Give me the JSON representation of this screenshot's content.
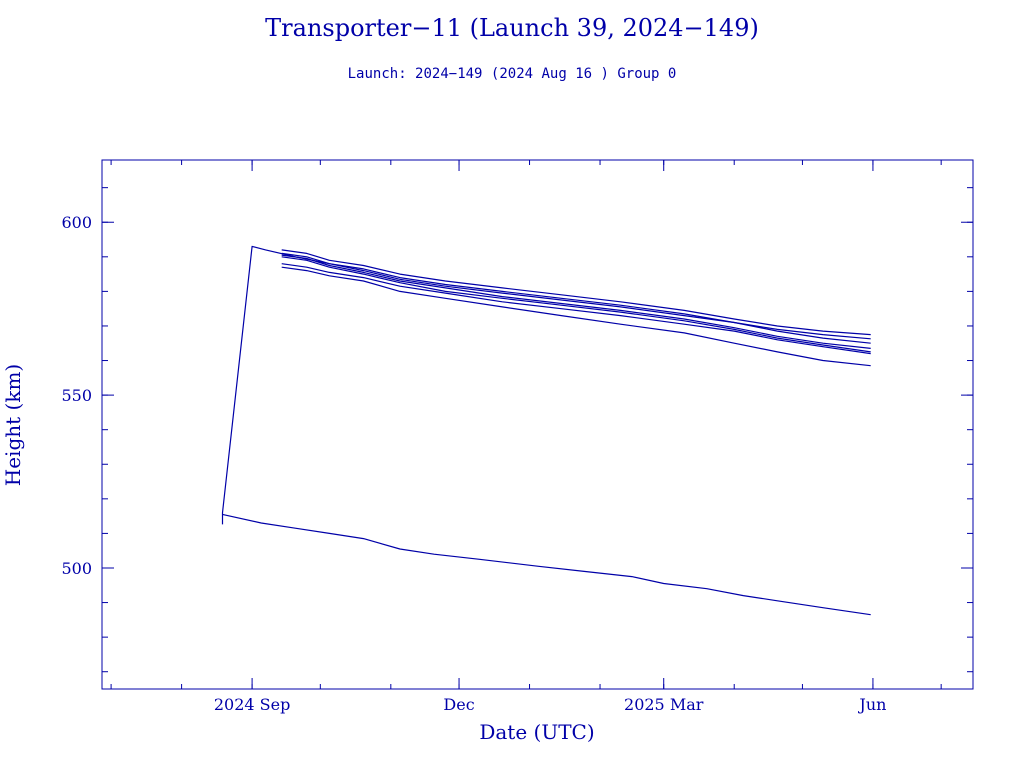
{
  "header": {
    "title": "Transporter−11 (Launch 39, 2024−149)",
    "subtitle": "Launch: 2024−149  (2024 Aug 16 )  Group 0"
  },
  "colors": {
    "ink": "#0000a8",
    "background": "#ffffff"
  },
  "chart_data": {
    "type": "line",
    "title": "Transporter−11 (Launch 39, 2024−149)",
    "subtitle": "Launch: 2024−149  (2024 Aug 16 )  Group 0",
    "xlabel": "Date (UTC)",
    "ylabel": "Height (km)",
    "xlim": [
      "2024-06-27",
      "2025-07-15"
    ],
    "ylim": [
      465,
      618
    ],
    "x_ticks": [
      {
        "date": "2024-09-01",
        "label": "2024 Sep"
      },
      {
        "date": "2024-12-01",
        "label": "Dec"
      },
      {
        "date": "2025-03-01",
        "label": "2025 Mar"
      },
      {
        "date": "2025-06-01",
        "label": "Jun"
      }
    ],
    "y_ticks": [
      500,
      550,
      600
    ],
    "grid": false,
    "series": [
      {
        "points": [
          [
            "2024-08-19",
            512.6
          ],
          [
            "2024-08-19",
            516
          ],
          [
            "2024-09-01",
            593
          ],
          [
            "2024-09-07",
            592
          ],
          [
            "2024-09-20",
            590
          ],
          [
            "2024-10-05",
            588
          ],
          [
            "2024-10-20",
            586
          ],
          [
            "2024-11-05",
            583.5
          ],
          [
            "2024-11-25",
            581.5
          ],
          [
            "2024-12-20",
            579.5
          ],
          [
            "2025-01-15",
            577.5
          ],
          [
            "2025-02-10",
            575.5
          ],
          [
            "2025-03-10",
            573
          ],
          [
            "2025-04-01",
            571
          ],
          [
            "2025-04-20",
            569
          ],
          [
            "2025-05-10",
            567.5
          ],
          [
            "2025-05-31",
            566.3
          ]
        ]
      },
      {
        "points": [
          [
            "2024-09-14",
            592
          ],
          [
            "2024-09-25",
            591
          ],
          [
            "2024-10-05",
            589
          ],
          [
            "2024-10-20",
            587.5
          ],
          [
            "2024-11-05",
            585
          ],
          [
            "2024-11-25",
            583
          ],
          [
            "2024-12-20",
            581
          ],
          [
            "2025-01-15",
            579
          ],
          [
            "2025-02-10",
            577
          ],
          [
            "2025-03-10",
            574.5
          ],
          [
            "2025-04-01",
            572
          ],
          [
            "2025-04-20",
            570
          ],
          [
            "2025-05-10",
            568.5
          ],
          [
            "2025-05-31",
            567.5
          ]
        ]
      },
      {
        "points": [
          [
            "2024-09-14",
            591
          ],
          [
            "2024-09-25",
            590
          ],
          [
            "2024-10-05",
            588
          ],
          [
            "2024-10-20",
            586.5
          ],
          [
            "2024-11-05",
            584
          ],
          [
            "2024-11-25",
            582
          ],
          [
            "2024-12-20",
            580
          ],
          [
            "2025-01-15",
            578
          ],
          [
            "2025-02-10",
            576
          ],
          [
            "2025-03-10",
            573.5
          ],
          [
            "2025-04-01",
            571
          ],
          [
            "2025-04-20",
            568.5
          ],
          [
            "2025-05-10",
            566.5
          ],
          [
            "2025-05-31",
            565
          ]
        ]
      },
      {
        "points": [
          [
            "2024-09-14",
            590.5
          ],
          [
            "2024-09-25",
            589.5
          ],
          [
            "2024-10-05",
            587.5
          ],
          [
            "2024-10-20",
            585.5
          ],
          [
            "2024-11-05",
            583
          ],
          [
            "2024-11-25",
            581
          ],
          [
            "2024-12-20",
            578.5
          ],
          [
            "2025-01-15",
            576.5
          ],
          [
            "2025-02-10",
            574.5
          ],
          [
            "2025-03-10",
            572
          ],
          [
            "2025-04-01",
            569.5
          ],
          [
            "2025-04-20",
            567
          ],
          [
            "2025-05-10",
            565
          ],
          [
            "2025-05-31",
            563.5
          ]
        ]
      },
      {
        "points": [
          [
            "2024-09-14",
            590
          ],
          [
            "2024-09-25",
            589
          ],
          [
            "2024-10-05",
            587
          ],
          [
            "2024-10-20",
            585
          ],
          [
            "2024-11-05",
            582.5
          ],
          [
            "2024-11-25",
            580
          ],
          [
            "2024-12-20",
            578
          ],
          [
            "2025-01-15",
            576
          ],
          [
            "2025-02-10",
            574
          ],
          [
            "2025-03-10",
            571.5
          ],
          [
            "2025-04-01",
            569
          ],
          [
            "2025-04-20",
            566.5
          ],
          [
            "2025-05-10",
            564.5
          ],
          [
            "2025-05-31",
            562.5
          ]
        ]
      },
      {
        "points": [
          [
            "2024-09-14",
            588
          ],
          [
            "2024-09-25",
            587
          ],
          [
            "2024-10-05",
            585.5
          ],
          [
            "2024-10-20",
            584
          ],
          [
            "2024-11-05",
            581.5
          ],
          [
            "2024-11-25",
            579.5
          ],
          [
            "2024-12-20",
            577
          ],
          [
            "2025-01-15",
            575
          ],
          [
            "2025-02-10",
            573
          ],
          [
            "2025-03-10",
            570.5
          ],
          [
            "2025-04-01",
            568.5
          ],
          [
            "2025-04-20",
            566
          ],
          [
            "2025-05-10",
            564
          ],
          [
            "2025-05-31",
            562
          ]
        ]
      },
      {
        "points": [
          [
            "2024-09-14",
            587
          ],
          [
            "2024-09-25",
            586
          ],
          [
            "2024-10-05",
            584.5
          ],
          [
            "2024-10-20",
            583
          ],
          [
            "2024-11-05",
            580
          ],
          [
            "2024-11-25",
            578
          ],
          [
            "2024-12-20",
            575.5
          ],
          [
            "2025-01-15",
            573
          ],
          [
            "2025-02-10",
            570.5
          ],
          [
            "2025-03-10",
            568
          ],
          [
            "2025-04-01",
            565
          ],
          [
            "2025-04-20",
            562.5
          ],
          [
            "2025-05-10",
            560
          ],
          [
            "2025-05-31",
            558.5
          ]
        ]
      },
      {
        "points": [
          [
            "2024-08-19",
            515.5
          ],
          [
            "2024-09-05",
            513
          ],
          [
            "2024-09-20",
            511.5
          ],
          [
            "2024-10-05",
            510
          ],
          [
            "2024-10-20",
            508.5
          ],
          [
            "2024-11-05",
            505.5
          ],
          [
            "2024-11-20",
            504
          ],
          [
            "2024-12-10",
            502.5
          ],
          [
            "2025-01-05",
            500.5
          ],
          [
            "2025-01-25",
            499
          ],
          [
            "2025-02-15",
            497.5
          ],
          [
            "2025-03-01",
            495.5
          ],
          [
            "2025-03-20",
            494
          ],
          [
            "2025-04-05",
            492
          ],
          [
            "2025-04-20",
            490.5
          ],
          [
            "2025-05-10",
            488.5
          ],
          [
            "2025-05-31",
            486.5
          ]
        ]
      }
    ]
  }
}
